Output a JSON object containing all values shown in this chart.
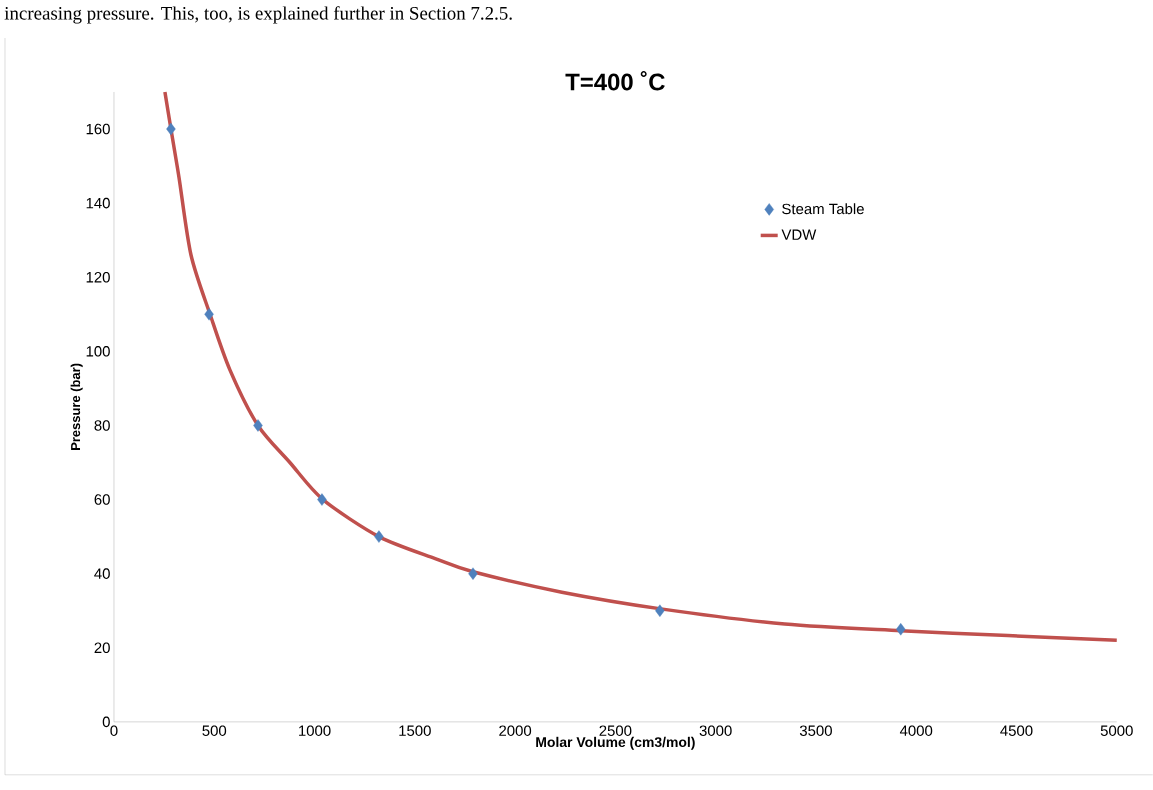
{
  "chart_data": {
    "type": "line",
    "title": "T=400 ˚C",
    "xlabel": "Molar Volume (cm3/mol)",
    "ylabel": "Pressure (bar)",
    "annotations": [
      "increasing pressure. This, too, is explained further in Section 7.2.5."
    ],
    "xlim": [
      0,
      5000
    ],
    "xticks": [
      0,
      500,
      1000,
      1500,
      2000,
      2500,
      3000,
      3500,
      4000,
      4500,
      5000
    ],
    "ylim": [
      0,
      170
    ],
    "yticks": [
      0,
      20,
      40,
      60,
      80,
      100,
      120,
      140,
      160
    ],
    "grid": false,
    "legend": "top right",
    "series": [
      {
        "name": "Steam Table",
        "type": "scatter",
        "marker": "diamond",
        "color": "#4f81bd",
        "x": [
          284,
          474,
          718,
          1037,
          1321,
          1790,
          2722,
          3923
        ],
        "values": [
          160,
          110,
          80,
          60,
          50,
          40,
          30,
          25
        ]
      },
      {
        "name": "VDW",
        "marker": "none",
        "line_style": "solid",
        "color": "#c0504d",
        "x": [
          254,
          284,
          324,
          384,
          479,
          578,
          718,
          877,
          1042,
          1321,
          1605,
          1790,
          2233,
          2727,
          3345,
          3923,
          4457,
          5000
        ],
        "values": [
          170,
          160,
          147,
          126,
          110,
          95,
          80,
          70,
          60,
          50,
          44,
          40.5,
          35,
          30.5,
          26.4,
          24.6,
          23.3,
          22
        ]
      }
    ]
  }
}
